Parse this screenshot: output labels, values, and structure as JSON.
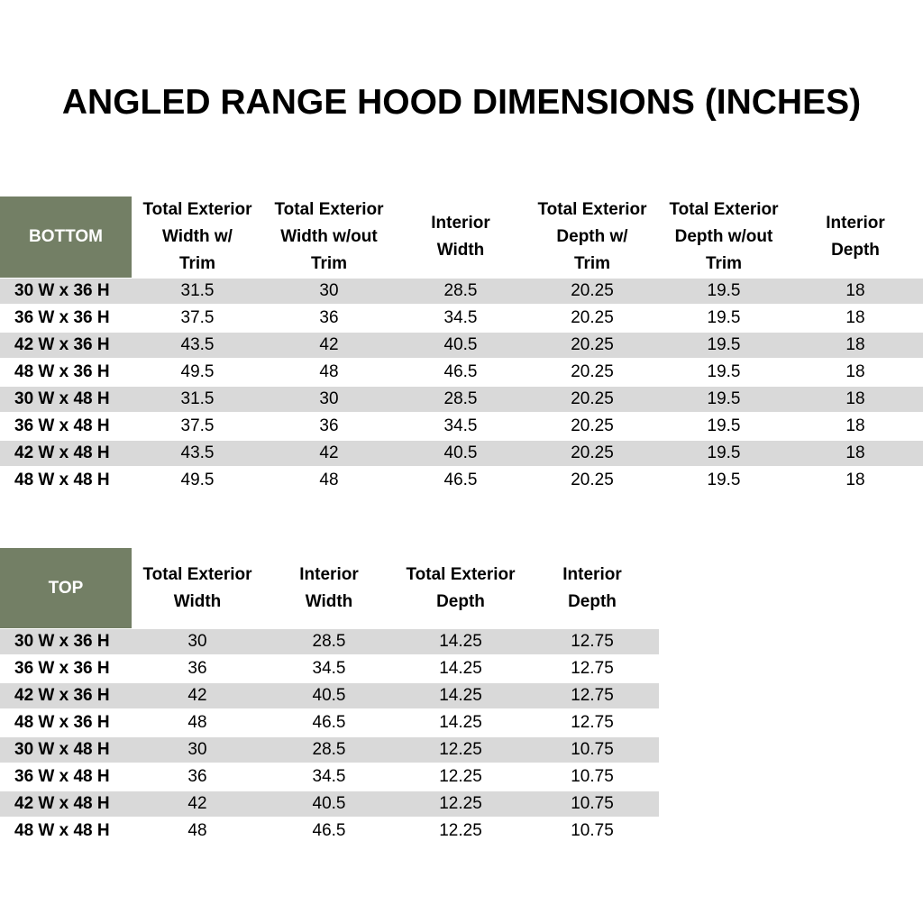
{
  "header": {
    "title": "ANGLED RANGE HOOD DIMENSIONS (INCHES)"
  },
  "tables": [
    {
      "label": "BOTTOM",
      "headers": [
        [
          "Total Exterior",
          "Width w/",
          "Trim"
        ],
        [
          "Total Exterior",
          "Width w/out",
          "Trim"
        ],
        [
          "Interior",
          "Width"
        ],
        [
          "Total Exterior",
          "Depth w/",
          "Trim"
        ],
        [
          "Total Exterior",
          "Depth w/out",
          "Trim"
        ],
        [
          "Interior",
          "Depth"
        ]
      ],
      "rows": [
        [
          "30 W x 36 H",
          "31.5",
          "30",
          "28.5",
          "20.25",
          "19.5",
          "18"
        ],
        [
          "36 W x 36 H",
          "37.5",
          "36",
          "34.5",
          "20.25",
          "19.5",
          "18"
        ],
        [
          "42 W x 36 H",
          "43.5",
          "42",
          "40.5",
          "20.25",
          "19.5",
          "18"
        ],
        [
          "48 W x 36 H",
          "49.5",
          "48",
          "46.5",
          "20.25",
          "19.5",
          "18"
        ],
        [
          "30 W x 48 H",
          "31.5",
          "30",
          "28.5",
          "20.25",
          "19.5",
          "18"
        ],
        [
          "36 W x 48 H",
          "37.5",
          "36",
          "34.5",
          "20.25",
          "19.5",
          "18"
        ],
        [
          "42 W x 48 H",
          "43.5",
          "42",
          "40.5",
          "20.25",
          "19.5",
          "18"
        ],
        [
          "48 W x 48 H",
          "49.5",
          "48",
          "46.5",
          "20.25",
          "19.5",
          "18"
        ]
      ]
    },
    {
      "label": "TOP",
      "headers": [
        [
          "Total Exterior",
          "Width"
        ],
        [
          "Interior",
          "Width"
        ],
        [
          "Total Exterior",
          "Depth"
        ],
        [
          "Interior",
          "Depth"
        ]
      ],
      "rows": [
        [
          "30 W x 36 H",
          "30",
          "28.5",
          "14.25",
          "12.75"
        ],
        [
          "36 W x 36 H",
          "36",
          "34.5",
          "14.25",
          "12.75"
        ],
        [
          "42 W x 36 H",
          "42",
          "40.5",
          "14.25",
          "12.75"
        ],
        [
          "48 W x 36 H",
          "48",
          "46.5",
          "14.25",
          "12.75"
        ],
        [
          "30 W x 48 H",
          "30",
          "28.5",
          "12.25",
          "10.75"
        ],
        [
          "36 W x 48 H",
          "36",
          "34.5",
          "12.25",
          "10.75"
        ],
        [
          "42 W x 48 H",
          "42",
          "40.5",
          "12.25",
          "10.75"
        ],
        [
          "48 W x 48 H",
          "48",
          "46.5",
          "12.25",
          "10.75"
        ]
      ]
    }
  ]
}
